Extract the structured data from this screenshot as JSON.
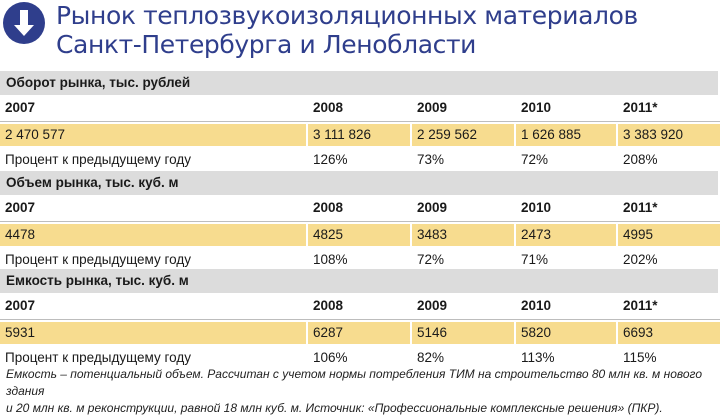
{
  "title": {
    "line1": "Рынок теплозвукоизоляционных материалов",
    "line2": "Санкт-Петербурга и Ленобласти"
  },
  "logo_icon": "download-arrow-icon",
  "colors": {
    "brand": "#2f3e8c",
    "highlight": "#f7dc8f",
    "header_bg": "#dcdcdc"
  },
  "sections": [
    {
      "heading": "Оборот рынка, тыс. рублей",
      "years": [
        "2007",
        "2008",
        "2009",
        "2010",
        "2011*"
      ],
      "values": [
        "2 470 577",
        "3 111 826",
        "2 259 562",
        "1 626 885",
        "3 383 920"
      ],
      "pct_label": "Процент к предыдущему году",
      "pct": [
        "126%",
        "73%",
        "72%",
        "208%"
      ]
    },
    {
      "heading": "Объем рынка, тыс. куб. м",
      "years": [
        "2007",
        "2008",
        "2009",
        "2010",
        "2011*"
      ],
      "values": [
        "4478",
        "4825",
        "3483",
        "2473",
        "4995"
      ],
      "pct_label": "Процент к предыдущему году",
      "pct": [
        "108%",
        "72%",
        "71%",
        "202%"
      ]
    },
    {
      "heading": "Емкость рынка, тыс. куб. м",
      "years": [
        "2007",
        "2008",
        "2009",
        "2010",
        "2011*"
      ],
      "values": [
        "5931",
        "6287",
        "5146",
        "5820",
        "6693"
      ],
      "pct_label": "Процент к предыдущему году",
      "pct": [
        "106%",
        "82%",
        "113%",
        "115%"
      ]
    }
  ],
  "footnote": {
    "line1": "Емкость – потенциальный объем. Рассчитан с учетом нормы потребления ТИМ на строительство 80 млн кв. м нового здания",
    "line2": "и 20 млн кв. м реконструкции, равной 18 млн куб. м. Источник: «Профессиональные комплексные решения» (ПКР)."
  }
}
